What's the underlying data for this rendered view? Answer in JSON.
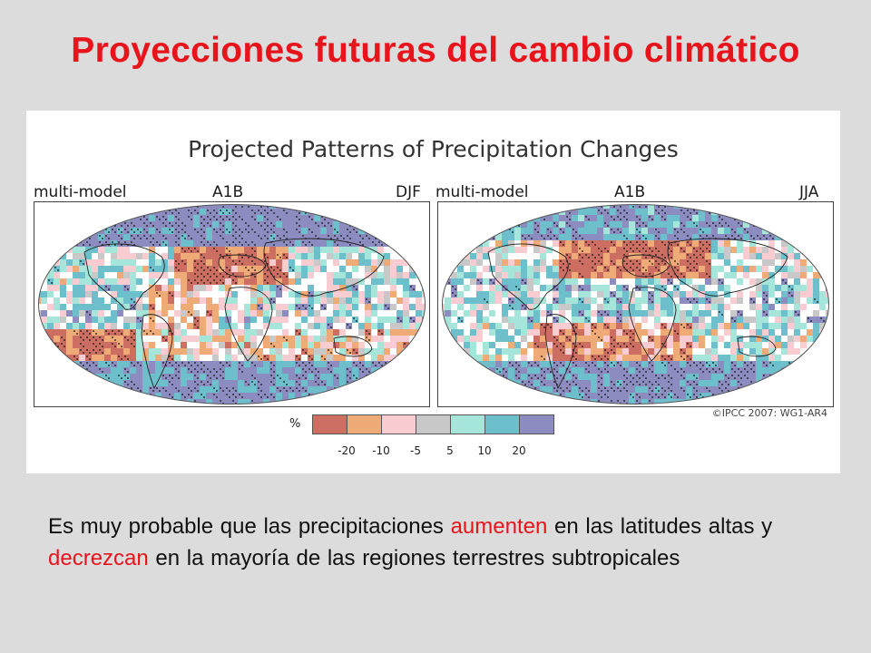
{
  "slide": {
    "title": "Proyecciones futuras del cambio climático"
  },
  "figure": {
    "title": "Projected Patterns of Precipitation Changes",
    "copyright": "©IPCC 2007: WG1-AR4",
    "panels": [
      {
        "model": "multi-model",
        "scenario": "A1B",
        "season": "DJF"
      },
      {
        "model": "multi-model",
        "scenario": "A1B",
        "season": "JJA"
      }
    ],
    "legend": {
      "unit": "%",
      "colors": [
        "#cd6e63",
        "#eeaa77",
        "#f9ccd2",
        "#c8c8c8",
        "#a6e5da",
        "#6ebfcc",
        "#8c8cc0"
      ],
      "ticks": [
        "-20",
        "-10",
        "-5",
        "5",
        "10",
        "20"
      ]
    }
  },
  "caption": {
    "p1": "Es muy probable  que las precipitaciones ",
    "h1": "aumenten",
    "p2": " en las latitudes altas y ",
    "h2": "decrezcan",
    "p3": "  en la mayoría de las regiones terrestres subtropicales"
  }
}
